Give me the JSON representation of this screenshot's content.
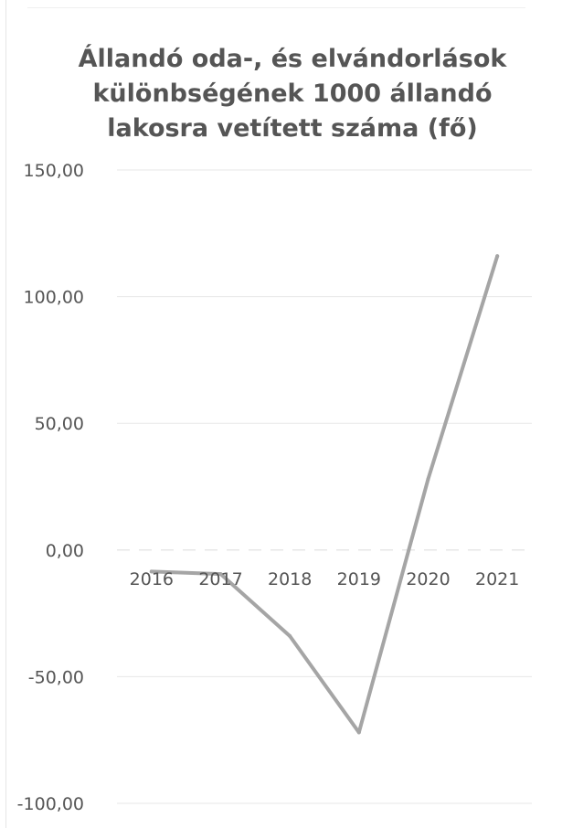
{
  "chart_data": {
    "type": "line",
    "title_lines": [
      "Állandó oda-, és elvándorlások",
      "különbségének 1000 állandó",
      "lakosra vetített száma (fő)"
    ],
    "categories": [
      "2016",
      "2017",
      "2018",
      "2019",
      "2020",
      "2021"
    ],
    "series": [
      {
        "values": [
          -8.5,
          -9.5,
          -34.0,
          -72.0,
          28.0,
          116.0
        ]
      }
    ],
    "y_ticks": [
      "150,00",
      "100,00",
      "50,00",
      "0,00",
      "-50,00",
      "-100,00"
    ],
    "y_tick_values": [
      150,
      100,
      50,
      0,
      -50,
      -100
    ],
    "ylim": [
      -100,
      150
    ],
    "xlabel": "",
    "ylabel": "",
    "grid": "horizontal",
    "legend": "none",
    "colors": {
      "line": "#a5a5a5",
      "grid": "#e7e7e7",
      "text": "#555555"
    }
  }
}
